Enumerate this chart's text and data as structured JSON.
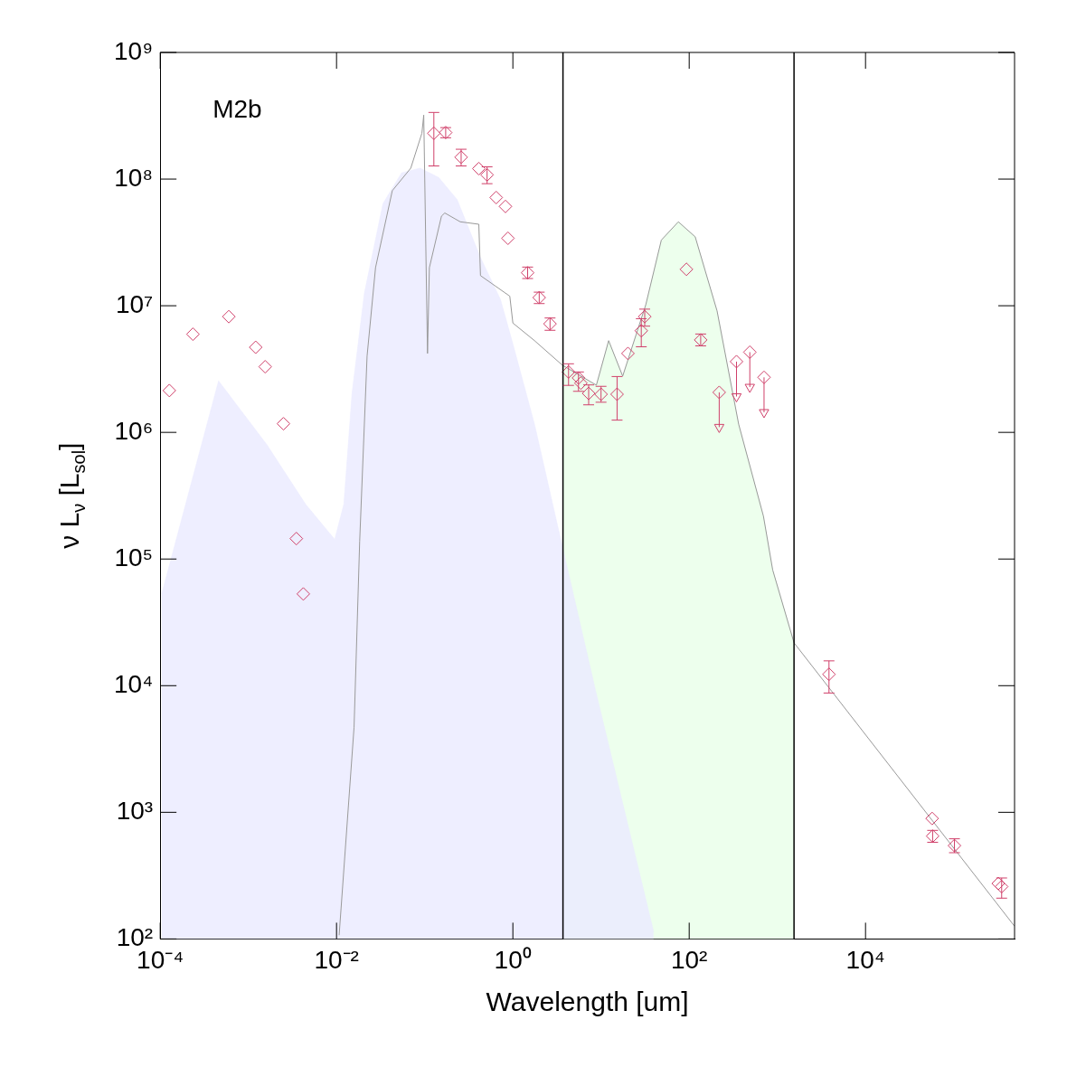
{
  "chart_data": {
    "type": "line",
    "xlabel": "Wavelength [um]",
    "ylabel": "ν L$_{ν}$ [L$_{sol}$]",
    "log": "xy",
    "grid": false,
    "legend": false,
    "xlim": [
      0.0001,
      490000
    ],
    "ylim": [
      100,
      1000000000
    ],
    "xticks": [
      {
        "value": 0.0001,
        "label": "10⁻⁴"
      },
      {
        "value": 0.01,
        "label": "10⁻²"
      },
      {
        "value": 1,
        "label": "10⁰"
      },
      {
        "value": 100,
        "label": "10²"
      },
      {
        "value": 10000,
        "label": "10⁴"
      }
    ],
    "yticks": [
      {
        "value": 100,
        "label": "10²"
      },
      {
        "value": 1000,
        "label": "10³"
      },
      {
        "value": 10000,
        "label": "10⁴"
      },
      {
        "value": 100000,
        "label": "10⁵"
      },
      {
        "value": 1000000,
        "label": "10⁶"
      },
      {
        "value": 10000000,
        "label": "10⁷"
      },
      {
        "value": 100000000,
        "label": "10⁸"
      },
      {
        "value": 1000000000,
        "label": "10⁹"
      }
    ],
    "annotations": [
      "M2b"
    ],
    "ref_lines": [
      {
        "axis": "x",
        "value": 3.7,
        "color": "#000000"
      },
      {
        "axis": "x",
        "value": 1545,
        "color": "#000000"
      }
    ],
    "series": [
      {
        "type": "area",
        "color": "#eaeaff",
        "x": [
          0.000104,
          0.000459,
          0.00162,
          0.00447,
          0.00953,
          0.0121,
          0.015,
          0.0207,
          0.0336,
          0.0546,
          0.0885,
          0.144,
          0.233,
          0.429,
          0.724,
          1,
          1.76,
          3.16,
          8.65,
          39.5
        ],
        "values": [
          53000,
          2550000,
          800000,
          270000,
          143000,
          270000,
          2050000,
          12600000,
          64000000,
          112000000,
          122000000,
          103000000,
          69000000,
          24000000,
          11200000,
          5000000,
          1160000,
          193000,
          9200,
          114
        ]
      },
      {
        "type": "area",
        "color": "#e8ffe8",
        "x": [
          3.7,
          8.85,
          12.2,
          17.6,
          32.2,
          48.3,
          75.3,
          117,
          207,
          364,
          695,
          885,
          1545
        ],
        "values": [
          3400000,
          2360000,
          5300000,
          2780000,
          10200000,
          33000000,
          46000000,
          35000000,
          9100000,
          1160000,
          218000,
          82000,
          21800
        ]
      },
      {
        "color": "#999999",
        "x": [
          0.0107,
          0.0158,
          0.0183,
          0.0222,
          0.0277,
          0.0429,
          0.0695,
          0.0929,
          0.0975,
          0.1076,
          0.113,
          0.155,
          0.169,
          0.253,
          0.411,
          0.429,
          0.923,
          1,
          1.76,
          3.63,
          8.85,
          12.2,
          17.6,
          32.2,
          48.3,
          75.3,
          117,
          207,
          364,
          695,
          885,
          1545,
          490000
        ],
        "values": [
          107,
          4700,
          138000,
          4000000,
          20000000,
          81000000,
          122000000,
          230000000,
          320000000,
          4200000,
          20000000,
          51000000,
          54000000,
          46000000,
          44000000,
          17300000,
          11900000,
          7300000,
          5300000,
          3400000,
          2360000,
          5300000,
          2780000,
          10200000,
          33000000,
          46000000,
          35000000,
          9100000,
          1160000,
          218000,
          82000,
          21800,
          126
        ]
      },
      {
        "type": "scatter",
        "color": "#d0406a",
        "marker": "diamond",
        "x": [
          0.000127,
          0.000235,
          0.0006,
          0.00121,
          0.00155,
          0.0025,
          0.0035,
          0.0042,
          0.127,
          0.173,
          0.259,
          0.411,
          0.51,
          0.647,
          0.824,
          0.88,
          1.47,
          1.99,
          2.64,
          4.28,
          5.55,
          5.9,
          7.24,
          10,
          15.2,
          20.2,
          28.6,
          31.3,
          93,
          135,
          3850,
          56900,
          57700,
          102000,
          320000,
          350000
        ],
        "values": [
          2140000,
          5960000,
          8200000,
          4700000,
          3300000,
          1170000,
          145000,
          53000,
          230000000,
          233000000,
          149000000,
          121000000,
          108000000,
          71500000,
          60800000,
          34100000,
          18200000,
          11600000,
          7200000,
          3000000,
          2690000,
          2450000,
          2030000,
          2000000,
          2000000,
          4200000,
          6350000,
          8200000,
          19400000,
          5370000,
          12300,
          894,
          649,
          546,
          274,
          259
        ],
        "errors": [
          null,
          null,
          null,
          null,
          null,
          null,
          null,
          null,
          [
            127000000,
            336000000
          ],
          [
            212000000,
            255000000
          ],
          [
            127000000,
            172000000
          ],
          null,
          [
            92000000,
            125000000
          ],
          null,
          null,
          null,
          [
            16400000,
            20200000
          ],
          [
            10400000,
            12800000
          ],
          [
            6400000,
            8000000
          ],
          [
            2350000,
            3480000
          ],
          [
            2110000,
            3000000
          ],
          null,
          [
            1650000,
            2370000
          ],
          [
            1730000,
            2310000
          ],
          [
            1250000,
            2760000
          ],
          null,
          [
            4740000,
            7900000
          ],
          [
            6900000,
            9400000
          ],
          null,
          [
            4820000,
            5980000
          ],
          [
            8750,
            15700
          ],
          null,
          [
            580,
            720
          ],
          [
            480,
            618
          ],
          null,
          [
            210,
            303
          ]
        ]
      },
      {
        "type": "scatter",
        "color": "#d0406a",
        "marker": "diamond",
        "x": [
          219,
          344,
          487,
          706
        ],
        "values": [
          2070000,
          3620000,
          4300000,
          2720000
        ],
        "errors": [
          [
            1100000,
            2070000
          ],
          [
            1920000,
            3620000
          ],
          [
            2280000,
            4300000
          ],
          [
            1440000,
            2720000
          ]
        ]
      },
      {
        "type": "scatter",
        "color": "#d0406a",
        "marker": "triangle",
        "x": [
          219,
          344,
          487,
          706
        ],
        "values": [
          1100000,
          1920000,
          2280000,
          1440000
        ]
      }
    ]
  }
}
